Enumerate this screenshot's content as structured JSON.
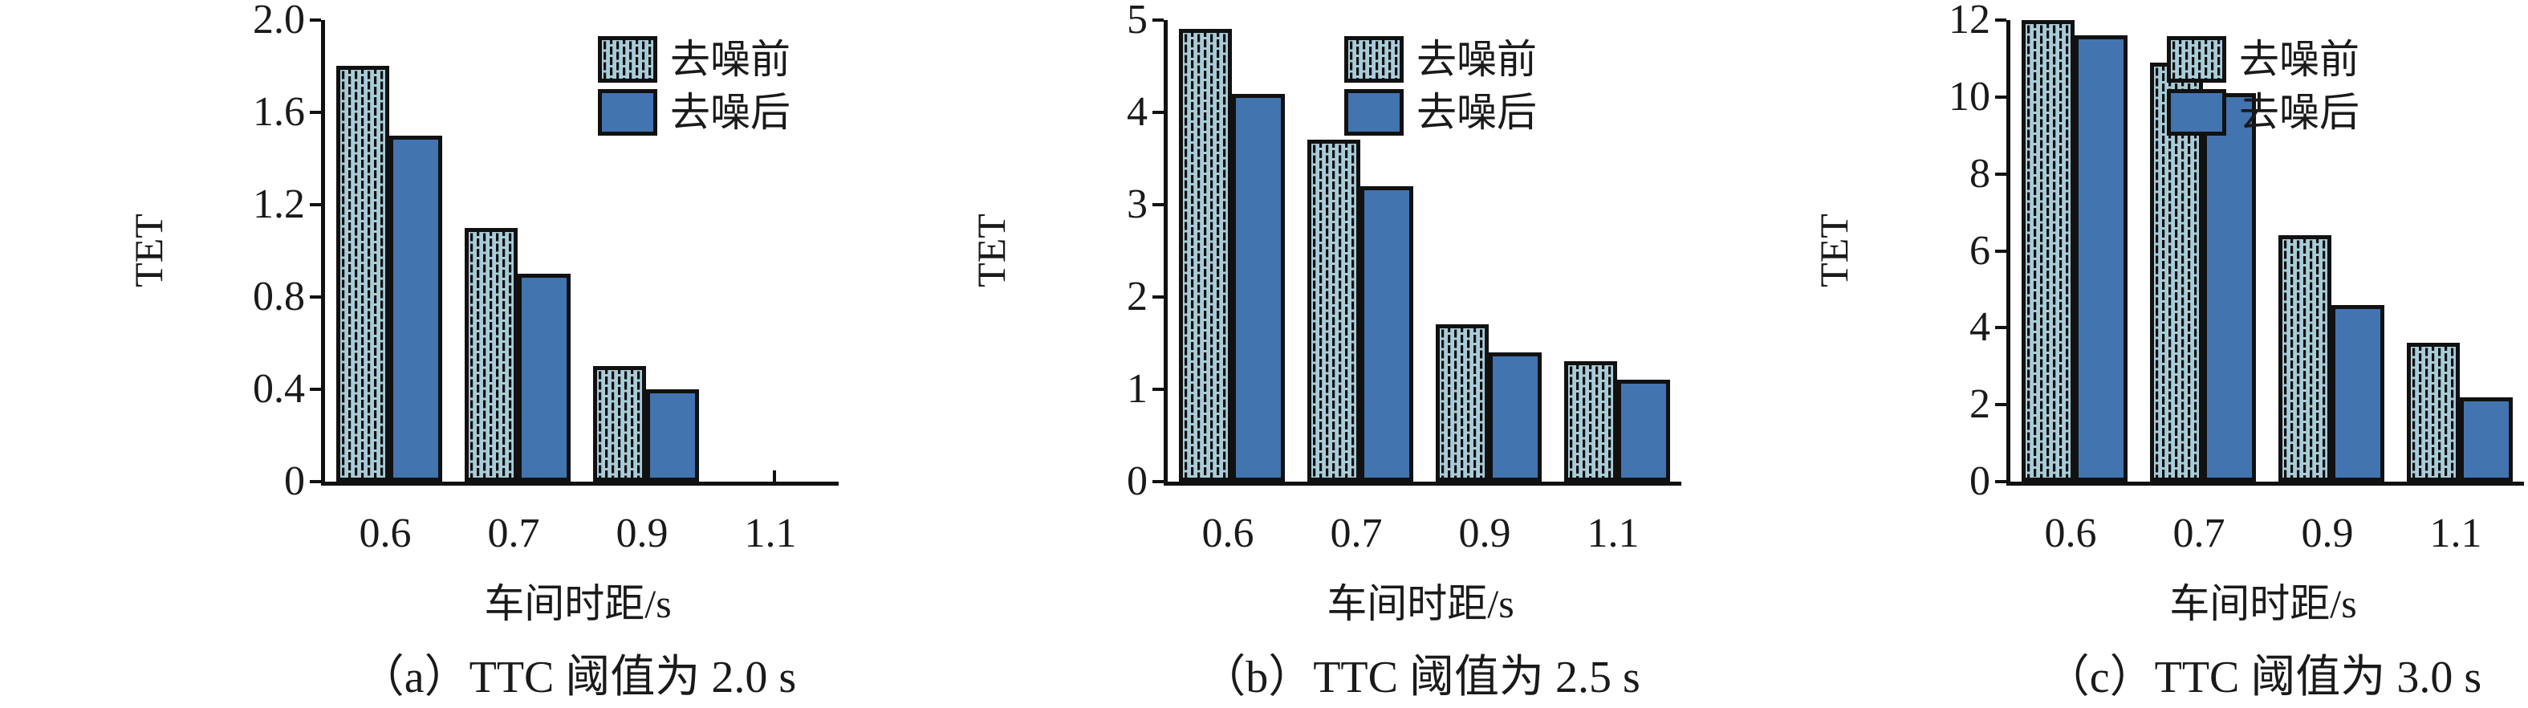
{
  "figure": {
    "background": "#ffffff",
    "text_color": "#1a1a1a",
    "axis_color": "#111111",
    "series_styles": {
      "before": {
        "label": "去噪前",
        "fill": "#a8ccd8",
        "hatch_color": "#101010",
        "outline": "#111111",
        "pattern": "offset-vertical-dashes"
      },
      "after": {
        "label": "去噪后",
        "fill": "#4274b0",
        "outline": "#111111",
        "pattern": "solid"
      }
    }
  },
  "chart_data": [
    {
      "type": "bar",
      "title": "（a）TTC 阈值为 2.0 s",
      "xlabel": "车间时距/s",
      "ylabel": "TET",
      "categories": [
        "0.6",
        "0.7",
        "0.9",
        "1.1"
      ],
      "series": [
        {
          "name": "去噪前",
          "values": [
            1.8,
            1.1,
            0.5,
            0
          ]
        },
        {
          "name": "去噪后",
          "values": [
            1.5,
            0.9,
            0.4,
            0
          ]
        }
      ],
      "ylim": [
        0,
        2.0
      ],
      "ytick_values": [
        2.0,
        1.6,
        1.2,
        0.8,
        0.4,
        0
      ],
      "ytick_labels": [
        "2.0",
        "1.6",
        "1.2",
        "0.8",
        "0.4",
        "0"
      ],
      "grid": false,
      "legend_position": "top-right"
    },
    {
      "type": "bar",
      "title": "（b）TTC 阈值为 2.5 s",
      "xlabel": "车间时距/s",
      "ylabel": "TET",
      "categories": [
        "0.6",
        "0.7",
        "0.9",
        "1.1"
      ],
      "series": [
        {
          "name": "去噪前",
          "values": [
            4.9,
            3.7,
            1.7,
            1.3
          ]
        },
        {
          "name": "去噪后",
          "values": [
            4.2,
            3.2,
            1.4,
            1.1
          ]
        }
      ],
      "ylim": [
        0,
        5
      ],
      "ytick_values": [
        5,
        4,
        3,
        2,
        1,
        0
      ],
      "ytick_labels": [
        "5",
        "4",
        "3",
        "2",
        "1",
        "0"
      ],
      "grid": false,
      "legend_position": "top-right"
    },
    {
      "type": "bar",
      "title": "（c）TTC 阈值为 3.0 s",
      "xlabel": "车间时距/s",
      "ylabel": "TET",
      "categories": [
        "0.6",
        "0.7",
        "0.9",
        "1.1"
      ],
      "series": [
        {
          "name": "去噪前",
          "values": [
            12.0,
            10.9,
            6.4,
            3.6
          ]
        },
        {
          "name": "去噪后",
          "values": [
            11.6,
            10.1,
            4.6,
            2.2
          ]
        }
      ],
      "ylim": [
        0,
        12
      ],
      "ytick_values": [
        12,
        10,
        8,
        6,
        4,
        2,
        0
      ],
      "ytick_labels": [
        "12",
        "10",
        "8",
        "6",
        "4",
        "2",
        "0"
      ],
      "grid": false,
      "legend_position": "top-right"
    }
  ]
}
